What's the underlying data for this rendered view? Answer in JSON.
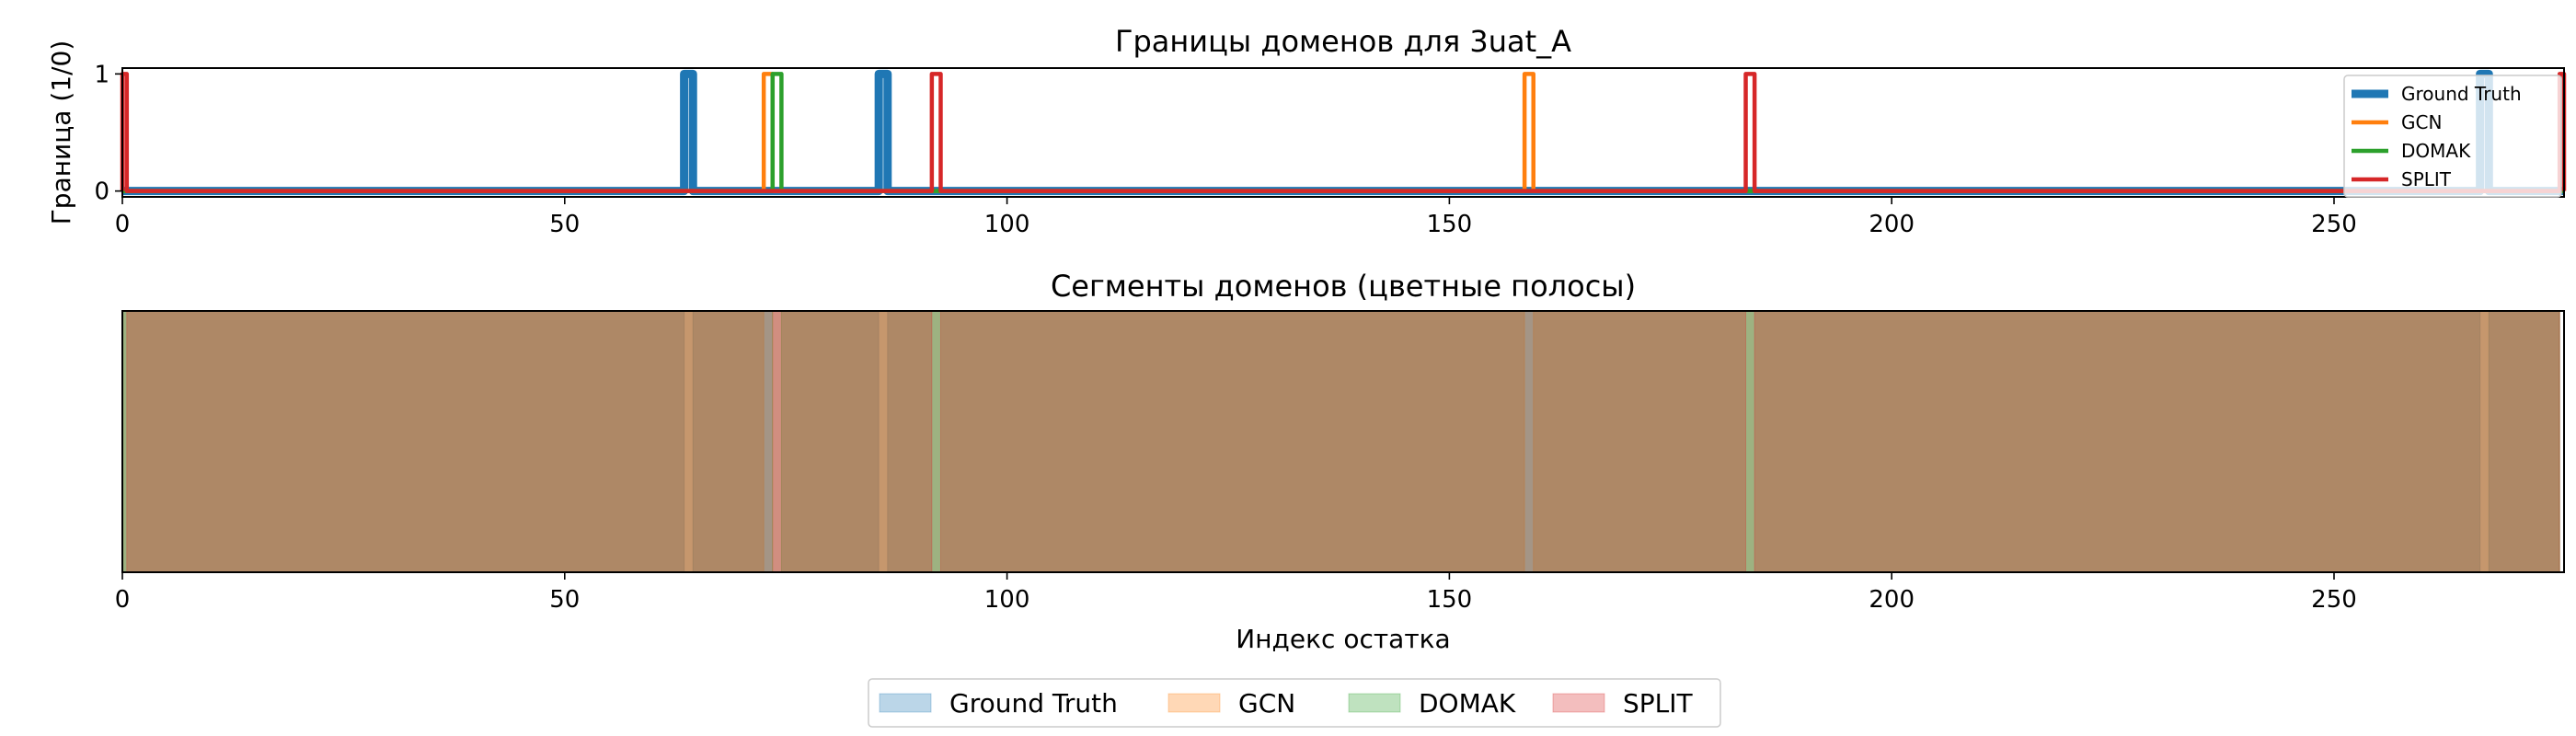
{
  "chart_data": [
    {
      "type": "line",
      "title": "Границы доменов для 3uat_A",
      "xlabel": "",
      "ylabel": "Граница (1/0)",
      "xlim": [
        0,
        276
      ],
      "ylim": [
        -0.05,
        1.05
      ],
      "xticks": [
        "0",
        "50",
        "100",
        "150",
        "200",
        "250"
      ],
      "yticks": [
        "0",
        "1"
      ],
      "grid": false,
      "legend_position": "top-right",
      "series": [
        {
          "name": "Ground Truth",
          "color": "#1f77b4",
          "boundaries": [
            64,
            86,
            267
          ]
        },
        {
          "name": "GCN",
          "color": "#ff7f0e",
          "boundaries": [
            73,
            159
          ]
        },
        {
          "name": "DOMAK",
          "color": "#2ca02c",
          "boundaries": [
            74
          ]
        },
        {
          "name": "SPLIT",
          "color": "#d62728",
          "boundaries": [
            0,
            92,
            184,
            276
          ]
        }
      ]
    },
    {
      "type": "area",
      "title": "Сегменты доменов (цветные полосы)",
      "xlabel": "Индекс остатка",
      "ylabel": "",
      "xlim": [
        0,
        276
      ],
      "xticks": [
        "0",
        "50",
        "100",
        "150",
        "200",
        "250"
      ],
      "grid": false,
      "legend_position": "bottom-center",
      "series": [
        {
          "name": "Ground Truth",
          "color": "#1f77b4",
          "segments": [
            [
              0,
              63.5
            ],
            [
              64.5,
              85.5
            ],
            [
              86.5,
              266.5
            ],
            [
              267.5,
              275.5
            ]
          ]
        },
        {
          "name": "GCN",
          "color": "#ff7f0e",
          "segments": [
            [
              0,
              72.5
            ],
            [
              73.5,
              158.5
            ],
            [
              159.5,
              275.5
            ]
          ]
        },
        {
          "name": "DOMAK",
          "color": "#2ca02c",
          "segments": [
            [
              0,
              73.5
            ],
            [
              74.5,
              275.5
            ]
          ]
        },
        {
          "name": "SPLIT",
          "color": "#d62728",
          "segments": [
            [
              0.5,
              91.5
            ],
            [
              92.5,
              183.5
            ],
            [
              184.5,
              275.5
            ]
          ]
        }
      ]
    }
  ]
}
